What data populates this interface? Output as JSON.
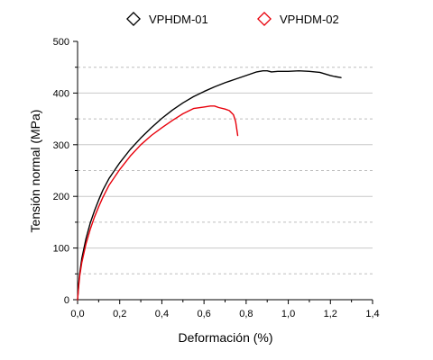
{
  "chart_data": {
    "type": "line",
    "title": "",
    "xlabel": "Deformación (%)",
    "ylabel": "Tensión normal (MPa)",
    "xlim": [
      0,
      1.4
    ],
    "ylim": [
      0,
      500
    ],
    "x_ticks": [
      "0,0",
      "0,2",
      "0,4",
      "0,6",
      "0,8",
      "1,0",
      "1,2",
      "1,4"
    ],
    "y_ticks": [
      "0",
      "100",
      "200",
      "300",
      "400",
      "500"
    ],
    "grid": true,
    "legend_position": "top",
    "series": [
      {
        "name": "VPHDM-01",
        "color": "#000000",
        "x": [
          0,
          0.005,
          0.01,
          0.02,
          0.04,
          0.06,
          0.08,
          0.1,
          0.12,
          0.15,
          0.2,
          0.25,
          0.3,
          0.35,
          0.4,
          0.45,
          0.5,
          0.55,
          0.6,
          0.65,
          0.7,
          0.75,
          0.8,
          0.85,
          0.88,
          0.9,
          0.92,
          0.95,
          1.0,
          1.05,
          1.1,
          1.15,
          1.2,
          1.22,
          1.25
        ],
        "y": [
          0,
          30,
          50,
          80,
          118,
          148,
          172,
          193,
          212,
          235,
          265,
          291,
          313,
          333,
          351,
          367,
          381,
          393,
          403,
          412,
          420,
          427,
          434,
          441,
          443,
          443,
          441,
          442,
          442,
          443,
          442,
          440,
          434,
          432,
          430
        ]
      },
      {
        "name": "VPHDM-02",
        "color": "#e8000b",
        "x": [
          0,
          0.005,
          0.01,
          0.02,
          0.04,
          0.06,
          0.08,
          0.1,
          0.12,
          0.15,
          0.2,
          0.25,
          0.3,
          0.35,
          0.4,
          0.45,
          0.5,
          0.55,
          0.6,
          0.63,
          0.65,
          0.67,
          0.7,
          0.72,
          0.74,
          0.75,
          0.755,
          0.76
        ],
        "y": [
          0,
          25,
          45,
          72,
          108,
          136,
          160,
          180,
          198,
          222,
          252,
          278,
          300,
          318,
          333,
          347,
          360,
          370,
          373,
          375,
          375,
          372,
          369,
          366,
          358,
          345,
          332,
          318
        ]
      }
    ]
  }
}
